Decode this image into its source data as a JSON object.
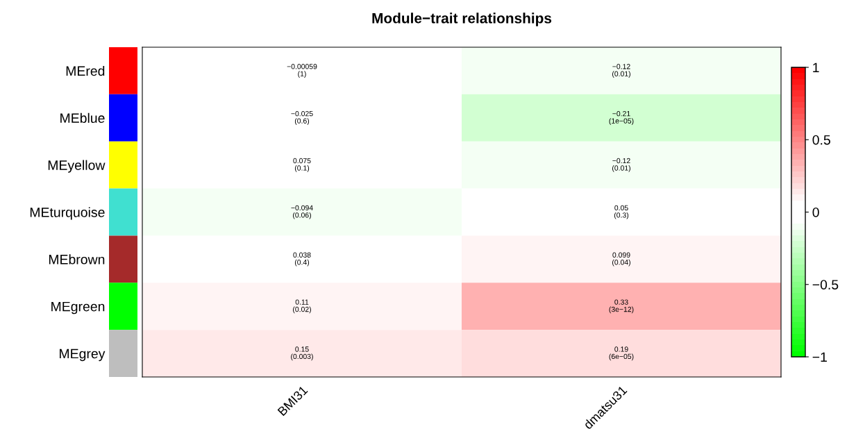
{
  "chart_data": {
    "type": "heatmap",
    "title": "Module−trait relationships",
    "categories": [
      "BMI31",
      "dmatsu31"
    ],
    "y_categories": [
      "MEred",
      "MEblue",
      "MEyellow",
      "MEturquoise",
      "MEbrown",
      "MEgreen",
      "MEgrey"
    ],
    "colors": [
      "#ff0000",
      "#0000ff",
      "#ffff00",
      "#40e0d0",
      "#a52a2a",
      "#00ff00",
      "#bebebe"
    ],
    "cells": [
      [
        -0.00059,
        -0.12
      ],
      [
        -0.025,
        -0.21
      ],
      [
        0.075,
        -0.12
      ],
      [
        -0.094,
        0.05
      ],
      [
        0.038,
        0.099
      ],
      [
        0.11,
        0.33
      ],
      [
        0.15,
        0.19
      ]
    ],
    "cell_labels": [
      [
        "−0.00059\n(1)",
        "−0.12\n(0.01)"
      ],
      [
        "−0.025\n(0.6)",
        "−0.21\n(1e−05)"
      ],
      [
        "0.075\n(0.1)",
        "−0.12\n(0.01)"
      ],
      [
        "−0.094\n(0.06)",
        "0.05\n(0.3)"
      ],
      [
        "0.038\n(0.4)",
        "0.099\n(0.04)"
      ],
      [
        "0.11\n(0.02)",
        "0.33\n(3e−12)"
      ],
      [
        "0.15\n(0.003)",
        "0.19\n(6e−05)"
      ]
    ],
    "clim": [
      -1,
      1
    ],
    "cticks": [
      {
        "value": -1,
        "label": "−1"
      },
      {
        "value": -0.5,
        "label": "−0.5"
      },
      0,
      0.5,
      1
    ]
  }
}
